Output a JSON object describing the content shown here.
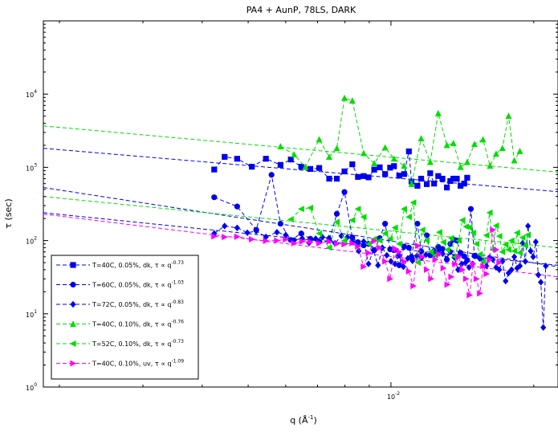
{
  "chart_data": {
    "type": "scatter",
    "title": "PA4 + AunP, 78LS, DARK",
    "xlabel": "q (Å",
    "xlabel_sup": "-1",
    "xlabel_close": ")",
    "ylabel": "τ (sec)",
    "xscale": "log",
    "yscale": "log",
    "xlim": [
      0.00185,
      0.0225
    ],
    "ylim": [
      1,
      100000
    ],
    "x_tick_labels": [
      {
        "value": 0.01,
        "base": "10",
        "exp": "-2"
      }
    ],
    "y_tick_labels": [
      {
        "value": 1,
        "base": "10",
        "exp": "0"
      },
      {
        "value": 10,
        "base": "10",
        "exp": "1"
      },
      {
        "value": 100,
        "base": "10",
        "exp": "2"
      },
      {
        "value": 1000,
        "base": "10",
        "exp": "3"
      },
      {
        "value": 10000,
        "base": "10",
        "exp": "4"
      }
    ],
    "legend_position": "bottom-left",
    "series": [
      {
        "name": "T=40C, 0.05%, dk, τ ∝ q",
        "exponent": "-0.73",
        "color": "#0000ee",
        "marker": "square",
        "fit": {
          "x": [
            0.00185,
            0.0225
          ],
          "y": [
            1820,
            465
          ]
        },
        "x": [
          0.00424,
          0.00446,
          0.00474,
          0.00509,
          0.00545,
          0.00585,
          0.00615,
          0.00647,
          0.00676,
          0.00706,
          0.00741,
          0.00769,
          0.00798,
          0.00829,
          0.00852,
          0.00876,
          0.00897,
          0.00922,
          0.00947,
          0.00972,
          0.00996,
          0.01015,
          0.01041,
          0.01066,
          0.01091,
          0.01105,
          0.01137,
          0.01158,
          0.0119,
          0.0121,
          0.01233,
          0.01258,
          0.01284,
          0.01312,
          0.01334,
          0.01354,
          0.01377,
          0.01402,
          0.01427,
          0.01448
        ],
        "y": [
          934,
          1390,
          1310,
          1020,
          1310,
          1080,
          1280,
          1020,
          950,
          980,
          700,
          700,
          880,
          1100,
          740,
          760,
          730,
          930,
          1000,
          810,
          990,
          1040,
          770,
          810,
          1650,
          640,
          560,
          700,
          590,
          830,
          600,
          760,
          700,
          530,
          650,
          700,
          700,
          560,
          600,
          720
        ]
      },
      {
        "name": "T=60C, 0.05%, dk, τ ∝ q",
        "exponent": "-1.03",
        "color": "#0000ee",
        "marker": "circle",
        "fit": {
          "x": [
            0.00185,
            0.0225
          ],
          "y": [
            530,
            44
          ]
        },
        "x": [
          0.00424,
          0.00474,
          0.0052,
          0.0056,
          0.00585,
          0.00615,
          0.00647,
          0.00676,
          0.00706,
          0.00741,
          0.00769,
          0.00798,
          0.00829,
          0.00852,
          0.00876,
          0.00897,
          0.00922,
          0.00947,
          0.00972,
          0.00996,
          0.01015,
          0.01041,
          0.01066,
          0.01091,
          0.01105,
          0.01137,
          0.01158,
          0.0119,
          0.0121,
          0.01233,
          0.01258,
          0.01284,
          0.01312,
          0.01334,
          0.01354,
          0.01377,
          0.01402,
          0.01427,
          0.01448,
          0.01474,
          0.015
        ],
        "y": [
          390,
          292,
          140,
          790,
          170,
          102,
          125,
          106,
          97,
          100,
          232,
          460,
          110,
          95,
          86,
          90,
          74,
          108,
          170,
          76,
          74,
          46,
          83,
          80,
          60,
          170,
          71,
          118,
          63,
          72,
          82,
          77,
          55,
          90,
          103,
          100,
          68,
          61,
          54,
          270,
          62
        ]
      },
      {
        "name": "T=72C, 0.05%, dk, τ ∝ q",
        "exponent": "-0.83",
        "color": "#0000ee",
        "marker": "diamond",
        "fit": {
          "x": [
            0.00185,
            0.0225
          ],
          "y": [
            240,
            46
          ]
        },
        "x": [
          0.00424,
          0.00446,
          0.00474,
          0.00498,
          0.0052,
          0.00545,
          0.00575,
          0.006,
          0.00625,
          0.0065,
          0.00672,
          0.00694,
          0.00717,
          0.0074,
          0.00762,
          0.00786,
          0.00809,
          0.00832,
          0.00855,
          0.00876,
          0.00897,
          0.00918,
          0.00939,
          0.00959,
          0.0098,
          0.01,
          0.0102,
          0.0104,
          0.01062,
          0.01085,
          0.0111,
          0.01135,
          0.0116,
          0.01185,
          0.0121,
          0.01235,
          0.0126,
          0.01285,
          0.0131,
          0.01335,
          0.0136,
          0.01385,
          0.0141,
          0.01436,
          0.01461,
          0.01487,
          0.01512,
          0.01538,
          0.01563,
          0.0159,
          0.01615,
          0.0164,
          0.01666,
          0.01692,
          0.01718,
          0.01745,
          0.0177,
          0.01796,
          0.0182,
          0.01845,
          0.0187,
          0.01895,
          0.0192,
          0.01945,
          0.0197,
          0.01995,
          0.0202,
          0.02045,
          0.0207,
          0.02095,
          0.0212
        ],
        "y": [
          125,
          158,
          149,
          128,
          135,
          112,
          130,
          119,
          101,
          107,
          93,
          106,
          111,
          108,
          92,
          116,
          111,
          95,
          72,
          97,
          48,
          74,
          46,
          80,
          63,
          52,
          48,
          63,
          44,
          57,
          53,
          62,
          58,
          64,
          65,
          65,
          73,
          66,
          56,
          70,
          59,
          40,
          48,
          50,
          43,
          48,
          62,
          57,
          53,
          45,
          59,
          55,
          43,
          40,
          52,
          28,
          36,
          40,
          60,
          42,
          45,
          92,
          52,
          158,
          72,
          60,
          96,
          34,
          27,
          6.5,
          45
        ]
      },
      {
        "name": "T=40C, 0.10%, dk, τ ∝ q",
        "exponent": "-0.76",
        "color": "#00dd00",
        "marker": "triangle-up",
        "fit": {
          "x": [
            0.00185,
            0.0225
          ],
          "y": [
            3680,
            860
          ]
        },
        "x": [
          0.00585,
          0.00625,
          0.0066,
          0.00706,
          0.00741,
          0.00769,
          0.00798,
          0.00829,
          0.00876,
          0.00922,
          0.00972,
          0.01015,
          0.01066,
          0.01105,
          0.01158,
          0.0121,
          0.01258,
          0.01312,
          0.01354,
          0.01402,
          0.01448,
          0.015,
          0.01563,
          0.01618,
          0.01666,
          0.01718,
          0.0177,
          0.0182,
          0.0187
        ],
        "y": [
          1930,
          1500,
          1010,
          2400,
          1390,
          1820,
          8830,
          8140,
          1560,
          1130,
          1860,
          1310,
          1050,
          590,
          2480,
          1180,
          5470,
          2010,
          2140,
          1010,
          1180,
          2080,
          2400,
          1050,
          1530,
          1830,
          5030,
          1240,
          1660
        ]
      },
      {
        "name": "T=52C, 0.10%, dk, τ ∝ q",
        "exponent": "-0.73",
        "color": "#00dd00",
        "marker": "triangle-left",
        "fit": {
          "x": [
            0.00185,
            0.0225
          ],
          "y": [
            400,
            80
          ]
        },
        "x": [
          0.00615,
          0.00647,
          0.00676,
          0.00706,
          0.00741,
          0.00769,
          0.00798,
          0.00829,
          0.00852,
          0.00876,
          0.00897,
          0.00922,
          0.00947,
          0.00972,
          0.00996,
          0.0102,
          0.01041,
          0.01066,
          0.01091,
          0.01115,
          0.0114,
          0.01165,
          0.0119,
          0.01215,
          0.0124,
          0.01265,
          0.0129,
          0.01315,
          0.0134,
          0.01365,
          0.0139,
          0.01415,
          0.0144,
          0.01465,
          0.0149,
          0.01515,
          0.0154,
          0.01565,
          0.0159,
          0.01615,
          0.0164,
          0.01666,
          0.01692,
          0.01718,
          0.01745,
          0.0177,
          0.01796,
          0.0182,
          0.01845,
          0.0187,
          0.01895,
          0.0192,
          0.01945
        ],
        "y": [
          195,
          270,
          280,
          125,
          80,
          180,
          100,
          190,
          270,
          210,
          90,
          105,
          100,
          125,
          105,
          150,
          90,
          270,
          210,
          330,
          50,
          140,
          100,
          70,
          63,
          130,
          95,
          75,
          108,
          60,
          100,
          190,
          155,
          150,
          128,
          90,
          65,
          52,
          118,
          240,
          75,
          160,
          115,
          70,
          88,
          75,
          100,
          72,
          128,
          68,
          110,
          85,
          120
        ]
      },
      {
        "name": "T=40C, 0.10%, uv, τ ∝ q",
        "exponent": "-1.09",
        "color": "#ff00ff",
        "marker": "triangle-right",
        "fit": {
          "x": [
            0.00185,
            0.0225
          ],
          "y": [
            230,
            32
          ]
        },
        "x": [
          0.00424,
          0.00446,
          0.00474,
          0.00509,
          0.00545,
          0.00575,
          0.006,
          0.00625,
          0.0065,
          0.00676,
          0.00706,
          0.00741,
          0.00769,
          0.00798,
          0.00829,
          0.00852,
          0.00876,
          0.00897,
          0.00922,
          0.00947,
          0.00972,
          0.00996,
          0.0102,
          0.01041,
          0.01066,
          0.01091,
          0.01115,
          0.0114,
          0.01165,
          0.0119,
          0.01215,
          0.0124,
          0.01265,
          0.0129,
          0.01315,
          0.0134,
          0.01365,
          0.0139,
          0.01415,
          0.0144,
          0.01465,
          0.0149,
          0.01515,
          0.0154,
          0.01565,
          0.0159,
          0.01615,
          0.0164,
          0.01666,
          0.01692
        ],
        "y": [
          114,
          112,
          113,
          104,
          99,
          100,
          104,
          92,
          97,
          96,
          92,
          97,
          90,
          89,
          92,
          83,
          44,
          68,
          98,
          80,
          52,
          30,
          78,
          70,
          52,
          38,
          24,
          85,
          60,
          40,
          30,
          55,
          65,
          42,
          25,
          32,
          48,
          60,
          40,
          30,
          18,
          48,
          30,
          19,
          45,
          35,
          55,
          140,
          75,
          50
        ]
      }
    ]
  }
}
